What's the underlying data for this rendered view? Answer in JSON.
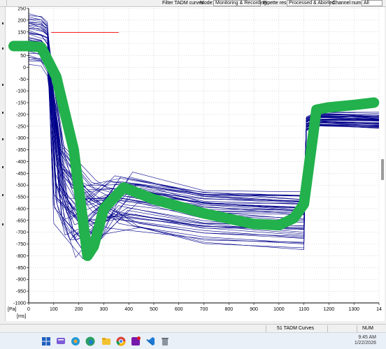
{
  "toolbar": {
    "filter_label": "Filter TADM curves",
    "mode_label": "Mode:",
    "mode_value": "Monitoring & Recording",
    "pipette_label": "Pipette result:",
    "pipette_value": "Processed & Aborted",
    "channel_label": "Channel number:",
    "channel_value": "All"
  },
  "chart_data": {
    "type": "line",
    "xlabel": "[ms]",
    "ylabel": "[Pa]",
    "xlim": [
      0,
      1400
    ],
    "ylim": [
      -1000,
      250
    ],
    "x_ticks": [
      "0",
      "100",
      "200",
      "300",
      "400",
      "500",
      "600",
      "700",
      "800",
      "900",
      "1000",
      "1100",
      "1200",
      "1300",
      "14"
    ],
    "y_ticks": [
      "250",
      "200",
      "150",
      "100",
      "50",
      "0",
      "-50",
      "-100",
      "-150",
      "-200",
      "-250",
      "-300",
      "-350",
      "-400",
      "-450",
      "-500",
      "-550",
      "-600",
      "-650",
      "-700",
      "-750",
      "-800",
      "-850",
      "-900",
      "-950",
      "-1000"
    ],
    "grid": true,
    "colors": {
      "curves": "#00008b",
      "limits": "#ff0000",
      "annotation": "#22b14c"
    },
    "annotation_stroke": {
      "x": [
        -60,
        0,
        50,
        110,
        180,
        235,
        260,
        300,
        380,
        500,
        700,
        900,
        1000,
        1060,
        1100,
        1150,
        1200,
        1300,
        1380
      ],
      "y": [
        90,
        90,
        85,
        -40,
        -350,
        -800,
        -760,
        -600,
        -510,
        -560,
        -620,
        -665,
        -670,
        -640,
        -580,
        -180,
        -170,
        -160,
        -150
      ]
    },
    "limit_lines": [
      {
        "x": [
          90,
          360
        ],
        "y": [
          148,
          148
        ]
      },
      {
        "x": [
          1300,
          1400
        ],
        "y": [
          -150,
          -150
        ]
      }
    ]
  },
  "status": {
    "curve_count": "51 TADM Curves",
    "num": "NUM"
  },
  "taskbar": {
    "time": "9:45 AM",
    "date": "1/22/2026",
    "icons": [
      "start-icon",
      "search-icon",
      "chat-icon",
      "copilot-icon",
      "edge-icon",
      "file-explorer-icon",
      "chrome-icon",
      "outlook-icon",
      "onenote-icon",
      "vscode-icon",
      "notepad-icon",
      "recycle-bin-icon"
    ]
  }
}
